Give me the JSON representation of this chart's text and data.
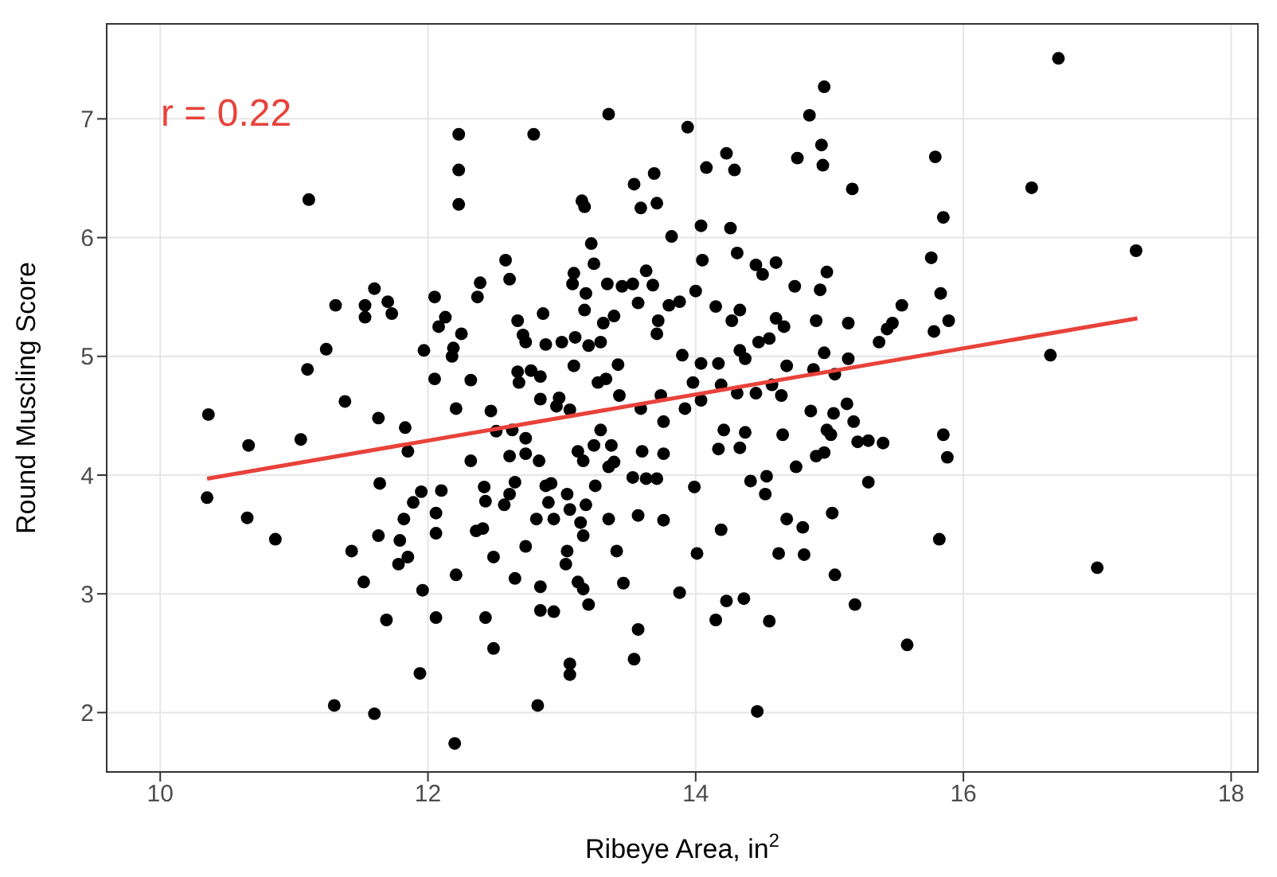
{
  "chart_data": {
    "type": "scatter",
    "xlabel": "Ribeye Area, in$^{2}$",
    "ylabel": "Round Muscling Score",
    "annotations": [
      "r = 0.22"
    ],
    "xlim": [
      9.6,
      18.2
    ],
    "ylim": [
      1.5,
      7.8
    ],
    "xticks": [
      10,
      12,
      14,
      16,
      18
    ],
    "yticks": [
      2,
      3,
      4,
      5,
      6,
      7
    ],
    "grid": true,
    "marker": "circle",
    "series": [
      {
        "color": "#000000",
        "x": [
          11.11,
          12.23,
          12.23,
          12.23,
          12.79,
          13.35,
          13.15,
          13.17,
          13.54,
          13.69,
          13.59,
          13.71,
          13.82,
          13.22,
          13.24,
          13.09,
          13.08,
          13.18,
          13.34,
          13.45,
          13.53,
          13.68,
          13.63,
          13.57,
          13.8,
          13.72,
          13.71,
          13.17,
          13.31,
          13.39,
          12.86,
          12.58,
          12.61,
          12.39,
          12.37,
          12.05,
          12.13,
          12.08,
          12.25,
          11.97,
          12.19,
          12.18,
          11.6,
          11.53,
          11.53,
          11.7,
          11.73,
          11.31,
          11.24,
          11.1,
          11.38,
          10.36,
          11.63,
          11.83,
          12.67,
          12.71,
          12.73,
          12.88,
          13.0,
          13.1,
          13.2,
          13.29,
          12.67,
          12.77,
          12.84,
          12.68,
          13.09,
          13.42,
          13.27,
          13.33,
          12.84,
          12.98,
          13.43,
          12.32,
          12.05,
          12.21,
          12.47,
          16.71,
          14.96,
          14.85,
          14.94,
          14.95,
          14.76,
          13.94,
          14.23,
          14.29,
          14.08,
          15.17,
          15.79,
          15.85,
          16.51,
          17.29,
          15.76,
          15.83,
          15.89,
          15.78,
          15.54,
          15.47,
          15.43,
          15.37,
          16.65,
          14.04,
          14.26,
          14.05,
          14.31,
          14.45,
          14.5,
          14.6,
          14.98,
          14.74,
          14.93,
          14.0,
          14.15,
          13.88,
          14.33,
          14.27,
          14.6,
          14.66,
          14.9,
          15.14,
          13.9,
          14.04,
          14.17,
          14.33,
          14.37,
          14.47,
          14.55,
          14.68,
          14.88,
          14.96,
          15.04,
          15.14,
          13.98,
          14.19,
          14.45,
          14.57,
          13.59,
          13.74,
          13.92,
          14.04,
          14.31,
          14.64,
          14.86,
          15.03,
          15.13,
          15.18,
          13.76,
          14.21,
          14.37,
          14.17,
          14.33,
          14.65,
          14.98,
          15.01,
          15.21,
          15.29,
          15.4,
          15.85,
          15.88,
          13.6,
          13.76,
          13.53,
          13.63,
          13.71,
          13.99,
          14.41,
          14.53,
          14.52,
          14.75,
          14.9,
          14.96,
          15.29,
          13.57,
          13.76,
          14.19,
          14.68,
          14.8,
          15.02,
          15.82,
          14.01,
          14.62,
          14.81,
          15.04,
          17.0,
          13.88,
          14.23,
          14.36,
          15.19,
          13.57,
          14.15,
          14.55,
          15.58,
          14.46,
          13.54,
          10.35,
          10.66,
          11.05,
          10.65,
          10.86,
          11.85,
          12.32,
          11.64,
          11.43,
          11.52,
          11.69,
          11.3,
          11.6,
          12.2,
          11.94,
          11.96,
          12.06,
          12.21,
          11.63,
          11.82,
          11.79,
          11.85,
          11.78,
          11.89,
          11.95,
          12.1,
          12.06,
          12.06,
          12.36,
          12.41,
          12.42,
          12.43,
          12.49,
          12.43,
          12.49,
          12.57,
          12.65,
          12.61,
          12.61,
          12.73,
          12.73,
          12.83,
          12.65,
          12.73,
          12.84,
          12.84,
          12.94,
          12.82,
          12.88,
          12.92,
          12.9,
          12.81,
          12.94,
          13.04,
          13.06,
          13.12,
          13.16,
          13.24,
          13.18,
          13.14,
          13.16,
          13.04,
          13.03,
          13.12,
          13.16,
          13.2,
          13.06,
          13.06,
          13.25,
          13.29,
          13.37,
          13.39,
          13.35,
          13.35,
          13.41,
          13.46,
          12.51,
          12.63,
          12.96,
          13.06
        ],
        "values": [
          6.32,
          6.87,
          6.57,
          6.28,
          6.87,
          7.04,
          6.31,
          6.26,
          6.45,
          6.54,
          6.25,
          6.29,
          6.01,
          5.95,
          5.78,
          5.7,
          5.61,
          5.53,
          5.61,
          5.59,
          5.61,
          5.6,
          5.72,
          5.45,
          5.43,
          5.3,
          5.19,
          5.39,
          5.28,
          5.34,
          5.36,
          5.81,
          5.65,
          5.62,
          5.5,
          5.5,
          5.33,
          5.25,
          5.19,
          5.05,
          5.07,
          5.0,
          5.57,
          5.43,
          5.33,
          5.46,
          5.36,
          5.43,
          5.06,
          4.89,
          4.62,
          4.51,
          4.48,
          4.4,
          5.3,
          5.18,
          5.12,
          5.1,
          5.12,
          5.16,
          5.09,
          5.12,
          4.87,
          4.88,
          4.83,
          4.78,
          4.92,
          4.93,
          4.78,
          4.81,
          4.64,
          4.65,
          4.67,
          4.8,
          4.81,
          4.56,
          4.54,
          7.51,
          7.27,
          7.03,
          6.78,
          6.61,
          6.67,
          6.93,
          6.71,
          6.57,
          6.59,
          6.41,
          6.68,
          6.17,
          6.42,
          5.89,
          5.83,
          5.53,
          5.3,
          5.21,
          5.43,
          5.28,
          5.23,
          5.12,
          5.01,
          6.1,
          6.08,
          5.81,
          5.87,
          5.77,
          5.69,
          5.79,
          5.71,
          5.59,
          5.56,
          5.55,
          5.42,
          5.46,
          5.39,
          5.3,
          5.32,
          5.25,
          5.3,
          5.28,
          5.01,
          4.94,
          4.94,
          5.05,
          4.98,
          5.12,
          5.15,
          4.92,
          4.89,
          5.03,
          4.85,
          4.98,
          4.78,
          4.76,
          4.69,
          4.76,
          4.56,
          4.67,
          4.56,
          4.63,
          4.69,
          4.67,
          4.54,
          4.52,
          4.6,
          4.45,
          4.45,
          4.38,
          4.36,
          4.22,
          4.23,
          4.34,
          4.38,
          4.34,
          4.28,
          4.29,
          4.27,
          4.34,
          4.15,
          4.2,
          4.18,
          3.98,
          3.97,
          3.97,
          3.9,
          3.95,
          3.99,
          3.84,
          4.07,
          4.16,
          4.19,
          3.94,
          3.66,
          3.62,
          3.54,
          3.63,
          3.56,
          3.68,
          3.46,
          3.34,
          3.34,
          3.33,
          3.16,
          3.22,
          3.01,
          2.94,
          2.96,
          2.91,
          2.7,
          2.78,
          2.77,
          2.57,
          2.01,
          2.45,
          3.81,
          4.25,
          4.3,
          3.64,
          3.46,
          4.2,
          4.12,
          3.93,
          3.36,
          3.1,
          2.78,
          2.06,
          1.99,
          1.74,
          2.33,
          3.03,
          2.8,
          3.16,
          3.49,
          3.63,
          3.45,
          3.31,
          3.25,
          3.77,
          3.86,
          3.87,
          3.68,
          3.51,
          3.53,
          3.55,
          3.9,
          3.78,
          3.31,
          2.8,
          2.54,
          3.75,
          3.94,
          3.84,
          4.16,
          4.31,
          4.18,
          4.12,
          3.13,
          3.4,
          3.06,
          2.86,
          2.85,
          2.06,
          3.91,
          3.93,
          3.77,
          3.63,
          3.63,
          3.84,
          3.71,
          4.2,
          4.12,
          4.25,
          3.75,
          3.6,
          3.49,
          3.36,
          3.25,
          3.1,
          3.04,
          2.91,
          2.41,
          2.32,
          3.91,
          4.38,
          4.25,
          4.11,
          4.07,
          3.63,
          3.36,
          3.09,
          4.37,
          4.38,
          4.58,
          4.55
        ]
      },
      {
        "type": "line",
        "marker": "none",
        "color": "#e8423a",
        "x": [
          10.35,
          17.3
        ],
        "values": [
          3.97,
          5.32
        ]
      }
    ]
  }
}
